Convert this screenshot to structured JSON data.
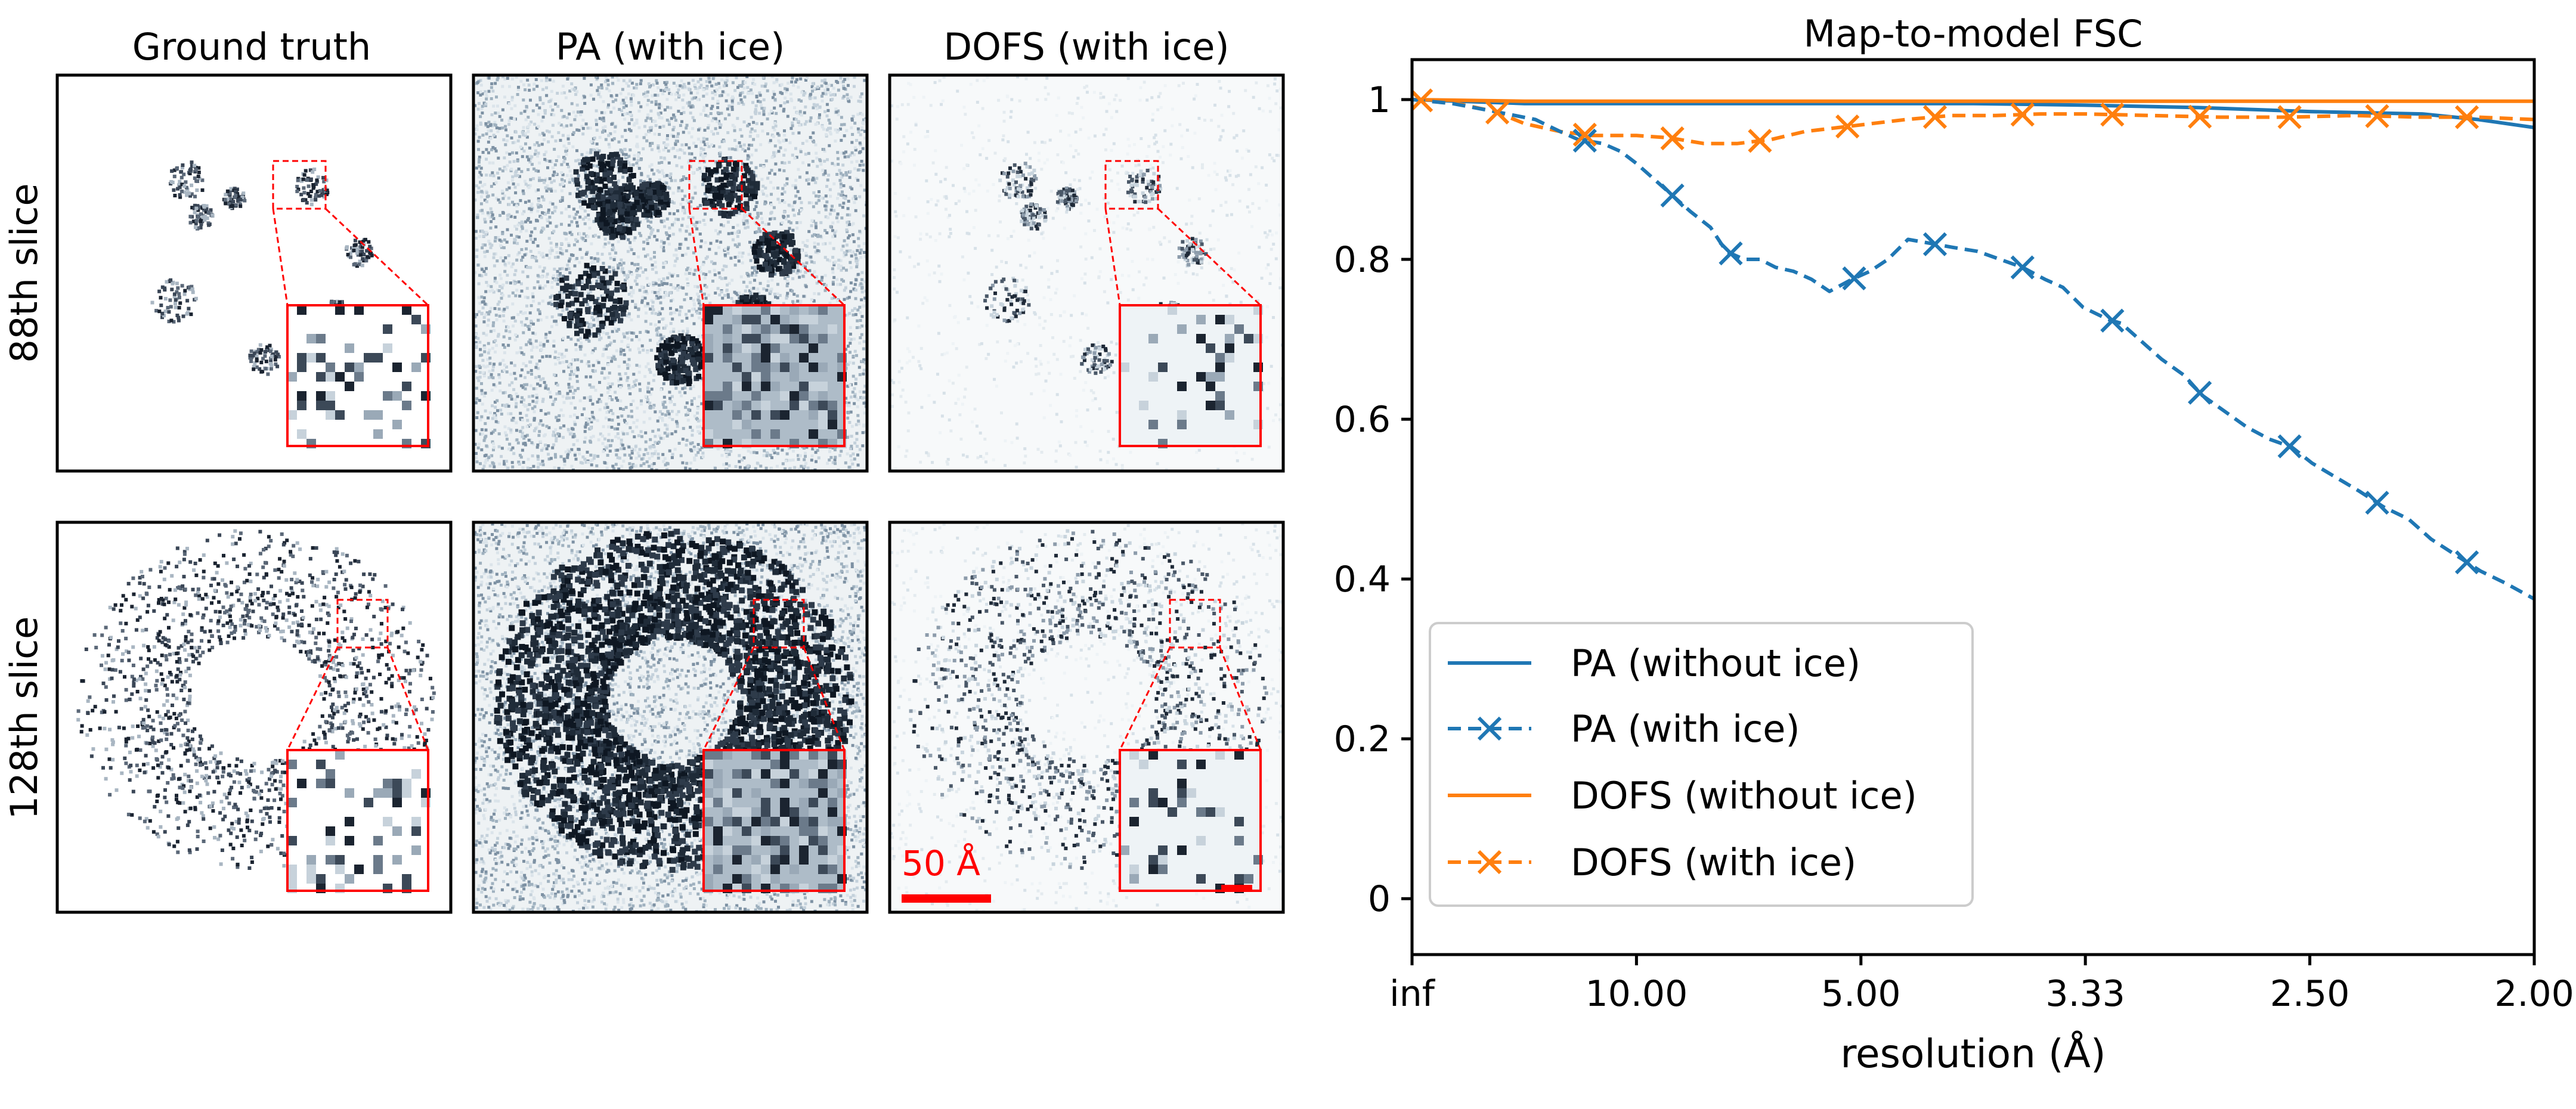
{
  "panels": {
    "columns": [
      "Ground truth",
      "PA (with ice)",
      "DOFS (with ice)"
    ],
    "rows": [
      "88th slice",
      "128th slice"
    ],
    "scalebar_label": "50 Å"
  },
  "chart_data": {
    "type": "line",
    "title": "Map-to-model FSC",
    "xlabel": "resolution (Å)",
    "ylabel": "",
    "x_ticks": [
      {
        "q": 0,
        "label": "inf"
      },
      {
        "q": 0.1,
        "label": "10.00"
      },
      {
        "q": 0.2,
        "label": "5.00"
      },
      {
        "q": 0.3,
        "label": "3.33"
      },
      {
        "q": 0.4,
        "label": "2.50"
      },
      {
        "q": 0.5,
        "label": "2.00"
      }
    ],
    "xlim_spatial_frequency": [
      0,
      0.5
    ],
    "ylim": [
      -0.07,
      1.05
    ],
    "y_ticks": [
      0,
      0.2,
      0.4,
      0.6,
      0.8,
      1
    ],
    "x_unit": "1/Å (spatial frequency, resolution = 1/q)",
    "legend_position": "lower-left",
    "series": [
      {
        "name": "PA (without ice)",
        "color": "#1f77b4",
        "style": "solid",
        "marker": "none",
        "q": [
          0,
          0.05,
          0.1,
          0.15,
          0.2,
          0.25,
          0.3,
          0.35,
          0.4,
          0.45,
          0.475,
          0.5
        ],
        "fsc": [
          1.0,
          0.995,
          0.995,
          0.995,
          0.995,
          0.995,
          0.993,
          0.99,
          0.985,
          0.982,
          0.975,
          0.965
        ]
      },
      {
        "name": "PA (with ice)",
        "color": "#1f77b4",
        "style": "dashed",
        "marker": "x",
        "q": [
          0,
          0.018,
          0.037,
          0.055,
          0.066,
          0.074,
          0.085,
          0.093,
          0.1,
          0.108,
          0.116,
          0.124,
          0.133,
          0.14,
          0.148,
          0.155,
          0.162,
          0.17,
          0.178,
          0.186,
          0.196,
          0.204,
          0.212,
          0.221,
          0.231,
          0.241,
          0.252,
          0.262,
          0.272,
          0.282,
          0.29,
          0.299,
          0.31,
          0.316,
          0.324,
          0.334,
          0.344,
          0.352,
          0.362,
          0.372,
          0.382,
          0.392,
          0.401,
          0.41,
          0.422,
          0.433,
          0.444,
          0.454,
          0.465,
          0.476,
          0.487,
          0.5
        ],
        "fsc": [
          1.0,
          0.995,
          0.985,
          0.975,
          0.96,
          0.95,
          0.945,
          0.935,
          0.92,
          0.9,
          0.88,
          0.86,
          0.84,
          0.81,
          0.8,
          0.8,
          0.79,
          0.785,
          0.775,
          0.76,
          0.775,
          0.785,
          0.8,
          0.825,
          0.82,
          0.815,
          0.81,
          0.8,
          0.79,
          0.775,
          0.765,
          0.74,
          0.725,
          0.72,
          0.7,
          0.675,
          0.655,
          0.63,
          0.61,
          0.59,
          0.575,
          0.565,
          0.545,
          0.53,
          0.51,
          0.49,
          0.475,
          0.45,
          0.43,
          0.41,
          0.395,
          0.375
        ]
      },
      {
        "name": "DOFS (without ice)",
        "color": "#ff7f0e",
        "style": "solid",
        "marker": "none",
        "q": [
          0,
          0.05,
          0.1,
          0.2,
          0.3,
          0.4,
          0.5
        ],
        "fsc": [
          1.0,
          0.998,
          0.998,
          0.998,
          0.998,
          0.998,
          0.998
        ]
      },
      {
        "name": "DOFS (with ice)",
        "color": "#ff7f0e",
        "style": "dashed",
        "marker": "x",
        "q": [
          0,
          0.02,
          0.037,
          0.05,
          0.066,
          0.08,
          0.1,
          0.115,
          0.13,
          0.145,
          0.16,
          0.175,
          0.19,
          0.205,
          0.22,
          0.24,
          0.26,
          0.28,
          0.3,
          0.33,
          0.36,
          0.39,
          0.42,
          0.45,
          0.475,
          0.5
        ],
        "fsc": [
          1.0,
          0.995,
          0.985,
          0.97,
          0.96,
          0.955,
          0.955,
          0.952,
          0.945,
          0.945,
          0.95,
          0.96,
          0.965,
          0.97,
          0.975,
          0.98,
          0.98,
          0.982,
          0.982,
          0.98,
          0.978,
          0.978,
          0.98,
          0.978,
          0.978,
          0.975
        ]
      }
    ],
    "x_markers": [
      {
        "series": 1,
        "q": [
          0.077,
          0.116,
          0.142,
          0.197,
          0.233,
          0.272,
          0.312,
          0.351,
          0.391,
          0.43,
          0.47
        ]
      },
      {
        "series": 3,
        "q": [
          0.004,
          0.038,
          0.077,
          0.116,
          0.155,
          0.194,
          0.233,
          0.272,
          0.312,
          0.351,
          0.391,
          0.43,
          0.47
        ]
      }
    ]
  }
}
